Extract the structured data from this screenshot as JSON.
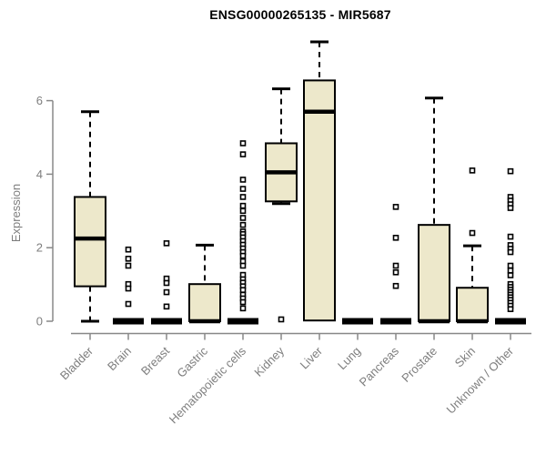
{
  "chart_data": {
    "type": "boxplot",
    "title": "ENSG00000265135 - MIR5687",
    "ylabel": "Expression",
    "xlabel": "",
    "yticks": [
      0,
      2,
      4,
      6
    ],
    "ylim": [
      0,
      6
    ],
    "grid": false,
    "legend": "none",
    "colors": {
      "box_fill": "#EDE8CB",
      "box_stroke": "#000000",
      "axis": "#888888",
      "tick_label": "#7e7e7e",
      "title": "#000000"
    },
    "categories": [
      "Bladder",
      "Brain",
      "Breast",
      "Gastric",
      "Hematopoietic cells",
      "Kidney",
      "Liver",
      "Lung",
      "Pancreas",
      "Prostate",
      "Skin",
      "Unknown / Other"
    ],
    "boxes": [
      {
        "category": "Bladder",
        "whisker_low": 0,
        "q1": 0.95,
        "median": 2.25,
        "q3": 3.38,
        "whisker_high": 5.7,
        "outliers": []
      },
      {
        "category": "Brain",
        "whisker_low": 0,
        "q1": 0,
        "median": 0,
        "q3": 0,
        "whisker_high": 0,
        "outliers": [
          1.95,
          1.7,
          1.51,
          1.01,
          0.89,
          0.47
        ]
      },
      {
        "category": "Breast",
        "whisker_low": 0,
        "q1": 0,
        "median": 0,
        "q3": 0,
        "whisker_high": 0,
        "outliers": [
          2.12,
          1.16,
          1.04,
          0.79,
          0.4
        ]
      },
      {
        "category": "Gastric",
        "whisker_low": 0,
        "q1": 0,
        "median": 0,
        "q3": 1.01,
        "whisker_high": 2.07,
        "outliers": []
      },
      {
        "category": "Hematopoietic cells",
        "whisker_low": 0,
        "q1": 0,
        "median": 0,
        "q3": 0,
        "whisker_high": 0,
        "outliers": [
          4.84,
          4.54,
          3.85,
          3.6,
          3.38,
          3.14,
          3.0,
          2.81,
          2.62,
          2.44,
          2.37,
          2.28,
          2.18,
          2.08,
          1.98,
          1.88,
          1.78,
          1.63,
          1.51,
          1.26,
          1.14,
          1.05,
          0.95,
          0.85,
          0.72,
          0.62,
          0.52,
          0.35
        ]
      },
      {
        "category": "Kidney",
        "whisker_low": 3.2,
        "q1": 3.26,
        "median": 4.05,
        "q3": 4.84,
        "whisker_high": 6.32,
        "outliers": [
          0.05
        ]
      },
      {
        "category": "Liver",
        "whisker_low": 0.02,
        "q1": 0.02,
        "median": 5.7,
        "q3": 6.55,
        "whisker_high": 7.6,
        "outliers": []
      },
      {
        "category": "Lung",
        "whisker_low": 0,
        "q1": 0,
        "median": 0,
        "q3": 0,
        "whisker_high": 0,
        "outliers": []
      },
      {
        "category": "Pancreas",
        "whisker_low": 0,
        "q1": 0,
        "median": 0,
        "q3": 0,
        "whisker_high": 0,
        "outliers": [
          3.11,
          2.27,
          1.51,
          1.33,
          0.96
        ]
      },
      {
        "category": "Prostate",
        "whisker_low": 0,
        "q1": 0,
        "median": 0,
        "q3": 2.62,
        "whisker_high": 6.07,
        "outliers": []
      },
      {
        "category": "Skin",
        "whisker_low": 0,
        "q1": 0,
        "median": 0,
        "q3": 0.91,
        "whisker_high": 2.05,
        "outliers": [
          4.1,
          2.4
        ]
      },
      {
        "category": "Unknown / Other",
        "whisker_low": 0,
        "q1": 0,
        "median": 0,
        "q3": 0,
        "whisker_high": 0,
        "outliers": [
          4.08,
          3.38,
          3.28,
          3.18,
          3.08,
          2.3,
          2.07,
          1.97,
          1.88,
          1.51,
          1.38,
          1.25,
          1.01,
          0.93,
          0.86,
          0.79,
          0.72,
          0.65,
          0.58,
          0.5,
          0.42,
          0.33
        ]
      }
    ]
  }
}
